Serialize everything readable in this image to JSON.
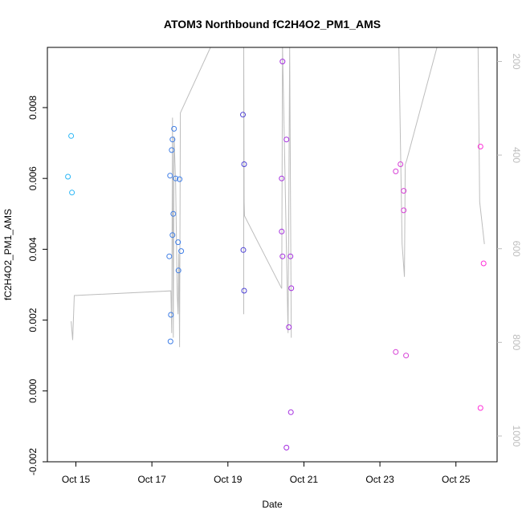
{
  "chart_data": {
    "type": "scatter",
    "title": "ATOM3 Northbound fC2H4O2_PM1_AMS",
    "xlabel": "Date",
    "ylabel": "fC2H4O2_PM1_AMS",
    "xlim": [
      "2017-10-14 06:00",
      "2017-10-26 02:00"
    ],
    "ylim": [
      -0.002,
      0.0097
    ],
    "x_ticks": [
      {
        "date": "2017-10-15",
        "label": "Oct 15"
      },
      {
        "date": "2017-10-17",
        "label": "Oct 17"
      },
      {
        "date": "2017-10-19",
        "label": "Oct 19"
      },
      {
        "date": "2017-10-21",
        "label": "Oct 21"
      },
      {
        "date": "2017-10-23",
        "label": "Oct 23"
      },
      {
        "date": "2017-10-25",
        "label": "Oct 25"
      }
    ],
    "y_ticks": [
      {
        "value": -0.002,
        "label": "-0.002"
      },
      {
        "value": 0.0,
        "label": "0.000"
      },
      {
        "value": 0.002,
        "label": "0.002"
      },
      {
        "value": 0.004,
        "label": "0.004"
      },
      {
        "value": 0.006,
        "label": "0.006"
      },
      {
        "value": 0.008,
        "label": "0.008"
      }
    ],
    "y2lim": [
      1055,
      170
    ],
    "y2_ticks": [
      {
        "value": 200,
        "label": "200"
      },
      {
        "value": 400,
        "label": "400"
      },
      {
        "value": 600,
        "label": "600"
      },
      {
        "value": 800,
        "label": "800"
      },
      {
        "value": 1000,
        "label": "1000"
      }
    ],
    "grid": false,
    "series": [
      {
        "color": "#29b6f6",
        "points": [
          [
            "2017-10-14 19:00",
            0.00605
          ],
          [
            "2017-10-14 21:00",
            0.0072
          ],
          [
            "2017-10-14 21:30",
            0.0056
          ]
        ]
      },
      {
        "color": "#3f7ee6",
        "points": [
          [
            "2017-10-17 11:00",
            0.0038
          ],
          [
            "2017-10-17 11:30",
            0.00608
          ],
          [
            "2017-10-17 11:45",
            0.0014
          ],
          [
            "2017-10-17 12:00",
            0.00215
          ],
          [
            "2017-10-17 12:30",
            0.0068
          ],
          [
            "2017-10-17 13:00",
            0.0071
          ],
          [
            "2017-10-17 13:00",
            0.0044
          ],
          [
            "2017-10-17 13:30",
            0.005
          ],
          [
            "2017-10-17 14:00",
            0.0074
          ],
          [
            "2017-10-17 15:00",
            0.006
          ],
          [
            "2017-10-17 16:30",
            0.0042
          ],
          [
            "2017-10-17 16:45",
            0.0034
          ],
          [
            "2017-10-17 17:30",
            0.00598
          ],
          [
            "2017-10-17 18:30",
            0.00395
          ]
        ]
      },
      {
        "color": "#4b3fd6",
        "points": [
          [
            "2017-10-19 09:30",
            0.0078
          ],
          [
            "2017-10-19 09:45",
            0.00398
          ],
          [
            "2017-10-19 10:15",
            0.0064
          ],
          [
            "2017-10-19 10:15",
            0.00283
          ]
        ]
      },
      {
        "color": "#a52ee0",
        "points": [
          [
            "2017-10-20 10:00",
            0.0045
          ],
          [
            "2017-10-20 10:00",
            0.006
          ],
          [
            "2017-10-20 10:30",
            0.0038
          ],
          [
            "2017-10-20 10:30",
            0.0093
          ],
          [
            "2017-10-20 13:00",
            0.0071
          ],
          [
            "2017-10-20 13:00",
            -0.0016
          ],
          [
            "2017-10-20 14:30",
            0.0018
          ],
          [
            "2017-10-20 15:30",
            0.0038
          ],
          [
            "2017-10-20 15:45",
            -0.0006
          ],
          [
            "2017-10-20 16:00",
            0.0029
          ]
        ]
      },
      {
        "color": "#d63fd6",
        "points": [
          [
            "2017-10-23 10:00",
            0.0062
          ],
          [
            "2017-10-23 10:00",
            0.0011
          ],
          [
            "2017-10-23 13:00",
            0.0064
          ],
          [
            "2017-10-23 15:00",
            0.00565
          ],
          [
            "2017-10-23 15:00",
            0.0051
          ],
          [
            "2017-10-23 16:30",
            0.001
          ]
        ]
      },
      {
        "color": "#ff2fd8",
        "points": [
          [
            "2017-10-25 15:30",
            0.0069
          ],
          [
            "2017-10-25 15:30",
            -0.00048
          ],
          [
            "2017-10-25 17:30",
            0.0036
          ]
        ]
      }
    ],
    "altitude_trace": {
      "color": "#bdbdbd",
      "axis": "right",
      "segments": [
        [
          [
            "2017-10-14 21:00",
            755
          ],
          [
            "2017-10-14 22:00",
            795
          ],
          [
            "2017-10-14 23:00",
            700
          ],
          [
            "2017-10-17 12:00",
            690
          ],
          [
            "2017-10-17 12:30",
            780
          ],
          [
            "2017-10-17 13:00",
            320
          ],
          [
            "2017-10-17 13:30",
            790
          ],
          [
            "2017-10-17 14:00",
            360
          ],
          [
            "2017-10-17 15:00",
            460
          ],
          [
            "2017-10-17 16:00",
            700
          ],
          [
            "2017-10-17 16:30",
            740
          ],
          [
            "2017-10-17 17:00",
            610
          ],
          [
            "2017-10-17 17:30",
            810
          ],
          [
            "2017-10-17 18:00",
            310
          ],
          [
            "2017-10-18 13:00",
            170
          ]
        ],
        [
          [
            "2017-10-19 10:00",
            740
          ],
          [
            "2017-10-19 10:00",
            170
          ],
          [
            "2017-10-19 10:15",
            500
          ],
          [
            "2017-10-19 10:30",
            530
          ],
          [
            "2017-10-20 10:00",
            685
          ],
          [
            "2017-10-20 10:30",
            170
          ],
          [
            "2017-10-20 14:00",
            780
          ],
          [
            "2017-10-20 15:00",
            170
          ],
          [
            "2017-10-20 16:00",
            790
          ]
        ],
        [
          [
            "2017-10-23 12:00",
            170
          ],
          [
            "2017-10-23 14:00",
            590
          ],
          [
            "2017-10-23 15:30",
            660
          ],
          [
            "2017-10-23 16:00",
            420
          ],
          [
            "2017-10-23 17:00",
            410
          ],
          [
            "2017-10-24 12:00",
            170
          ]
        ],
        [
          [
            "2017-10-25 14:00",
            170
          ],
          [
            "2017-10-25 15:00",
            500
          ],
          [
            "2017-10-25 18:00",
            590
          ]
        ]
      ]
    }
  }
}
